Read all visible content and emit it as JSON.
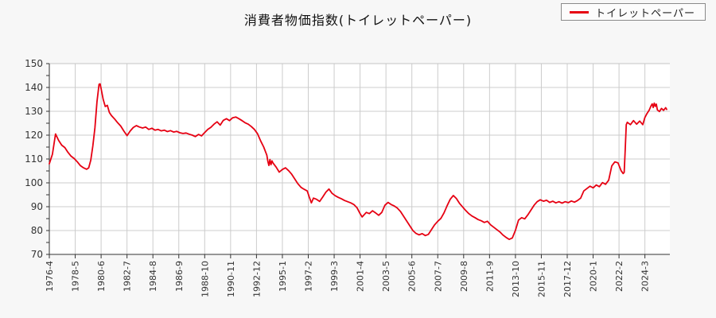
{
  "title": "消費者物価指数(トイレットペーパー)",
  "legend": {
    "position": "top-right",
    "items": [
      {
        "label": "トイレットペーパー",
        "color": "#e60012"
      }
    ]
  },
  "colors": {
    "page_background": "#f7f7f7",
    "plot_background": "#ffffff",
    "grid": "#cccccc",
    "plot_top_border": "#c4c4c4",
    "axis": "#333333",
    "tick_text": "#333333",
    "series_line": "#e60012",
    "title_text": "#111111"
  },
  "chart_data": {
    "type": "line",
    "title": "消費者物価指数(トイレットペーパー)",
    "xlabel": "",
    "ylabel": "",
    "grid": true,
    "legend_position": "top-right",
    "ylim": [
      70,
      150
    ],
    "y_ticks": [
      70,
      80,
      90,
      100,
      110,
      120,
      130,
      140,
      150
    ],
    "y_minor_tick_step": 5,
    "x_unit": "year-month",
    "x_start": "1976-4",
    "x_end": "2025-12",
    "x_tick_labels": [
      "1976-4",
      "1978-5",
      "1980-6",
      "1982-7",
      "1984-8",
      "1986-9",
      "1988-10",
      "1990-11",
      "1992-12",
      "1995-1",
      "1997-2",
      "1999-3",
      "2001-4",
      "2003-5",
      "2005-6",
      "2007-7",
      "2009-8",
      "2011-9",
      "2013-10",
      "2015-11",
      "2017-12",
      "2020-1",
      "2022-2",
      "2024-3"
    ],
    "series": [
      {
        "name": "トイレットペーパー",
        "color": "#e60012",
        "points": [
          [
            "1976-4",
            108.0
          ],
          [
            "1976-7",
            112.0
          ],
          [
            "1976-10",
            120.5
          ],
          [
            "1977-1",
            117.8
          ],
          [
            "1977-4",
            115.8
          ],
          [
            "1977-7",
            114.8
          ],
          [
            "1977-10",
            112.8
          ],
          [
            "1978-1",
            111.2
          ],
          [
            "1978-4",
            110.2
          ],
          [
            "1978-7",
            108.8
          ],
          [
            "1978-10",
            107.2
          ],
          [
            "1979-1",
            106.3
          ],
          [
            "1979-4",
            105.7
          ],
          [
            "1979-6",
            106.3
          ],
          [
            "1979-8",
            109.5
          ],
          [
            "1979-10",
            115.5
          ],
          [
            "1979-12",
            123.0
          ],
          [
            "1980-2",
            134.0
          ],
          [
            "1980-4",
            141.3
          ],
          [
            "1980-5",
            141.5
          ],
          [
            "1980-6",
            139.5
          ],
          [
            "1980-8",
            135.0
          ],
          [
            "1980-10",
            132.0
          ],
          [
            "1980-12",
            132.5
          ],
          [
            "1981-2",
            129.5
          ],
          [
            "1981-4",
            128.2
          ],
          [
            "1981-7",
            126.8
          ],
          [
            "1981-10",
            125.2
          ],
          [
            "1982-1",
            123.8
          ],
          [
            "1982-4",
            121.7
          ],
          [
            "1982-7",
            119.8
          ],
          [
            "1982-10",
            121.7
          ],
          [
            "1983-1",
            123.2
          ],
          [
            "1983-4",
            124.0
          ],
          [
            "1983-7",
            123.4
          ],
          [
            "1983-10",
            123.0
          ],
          [
            "1984-1",
            123.4
          ],
          [
            "1984-4",
            122.4
          ],
          [
            "1984-7",
            122.9
          ],
          [
            "1984-10",
            122.1
          ],
          [
            "1985-1",
            122.4
          ],
          [
            "1985-4",
            121.8
          ],
          [
            "1985-7",
            122.1
          ],
          [
            "1985-10",
            121.5
          ],
          [
            "1986-1",
            121.9
          ],
          [
            "1986-4",
            121.3
          ],
          [
            "1986-7",
            121.6
          ],
          [
            "1986-10",
            121.0
          ],
          [
            "1987-1",
            120.7
          ],
          [
            "1987-4",
            120.9
          ],
          [
            "1987-7",
            120.4
          ],
          [
            "1987-10",
            120.0
          ],
          [
            "1988-1",
            119.4
          ],
          [
            "1988-4",
            120.3
          ],
          [
            "1988-7",
            119.7
          ],
          [
            "1988-10",
            121.1
          ],
          [
            "1989-1",
            122.4
          ],
          [
            "1989-4",
            123.3
          ],
          [
            "1989-7",
            124.6
          ],
          [
            "1989-10",
            125.6
          ],
          [
            "1990-1",
            124.2
          ],
          [
            "1990-4",
            126.2
          ],
          [
            "1990-7",
            126.9
          ],
          [
            "1990-10",
            126.1
          ],
          [
            "1991-1",
            127.3
          ],
          [
            "1991-4",
            127.6
          ],
          [
            "1991-7",
            126.9
          ],
          [
            "1991-10",
            126.1
          ],
          [
            "1992-1",
            125.2
          ],
          [
            "1992-4",
            124.6
          ],
          [
            "1992-7",
            123.6
          ],
          [
            "1992-10",
            122.4
          ],
          [
            "1993-1",
            120.6
          ],
          [
            "1993-4",
            117.6
          ],
          [
            "1993-7",
            115.0
          ],
          [
            "1993-10",
            111.6
          ],
          [
            "1993-11",
            109.0
          ],
          [
            "1993-12",
            107.3
          ],
          [
            "1994-1",
            109.8
          ],
          [
            "1994-2",
            107.6
          ],
          [
            "1994-3",
            109.2
          ],
          [
            "1994-4",
            108.3
          ],
          [
            "1994-7",
            106.6
          ],
          [
            "1994-10",
            104.5
          ],
          [
            "1995-1",
            105.6
          ],
          [
            "1995-4",
            106.3
          ],
          [
            "1995-7",
            105.1
          ],
          [
            "1995-10",
            103.6
          ],
          [
            "1996-1",
            101.6
          ],
          [
            "1996-4",
            99.6
          ],
          [
            "1996-7",
            98.1
          ],
          [
            "1996-10",
            97.3
          ],
          [
            "1997-1",
            96.6
          ],
          [
            "1997-3",
            94.0
          ],
          [
            "1997-5",
            91.6
          ],
          [
            "1997-7",
            93.6
          ],
          [
            "1997-10",
            93.1
          ],
          [
            "1998-1",
            92.2
          ],
          [
            "1998-4",
            94.1
          ],
          [
            "1998-7",
            96.1
          ],
          [
            "1998-10",
            97.4
          ],
          [
            "1999-1",
            95.6
          ],
          [
            "1999-4",
            94.6
          ],
          [
            "1999-7",
            93.9
          ],
          [
            "1999-10",
            93.3
          ],
          [
            "2000-1",
            92.6
          ],
          [
            "2000-4",
            92.1
          ],
          [
            "2000-7",
            91.6
          ],
          [
            "2000-10",
            90.9
          ],
          [
            "2001-1",
            89.6
          ],
          [
            "2001-4",
            87.1
          ],
          [
            "2001-6",
            85.7
          ],
          [
            "2001-10",
            87.6
          ],
          [
            "2002-1",
            87.1
          ],
          [
            "2002-4",
            88.3
          ],
          [
            "2002-7",
            87.4
          ],
          [
            "2002-10",
            86.4
          ],
          [
            "2003-1",
            87.6
          ],
          [
            "2003-4",
            90.6
          ],
          [
            "2003-7",
            91.8
          ],
          [
            "2003-10",
            90.9
          ],
          [
            "2004-1",
            90.3
          ],
          [
            "2004-4",
            89.4
          ],
          [
            "2004-7",
            88.0
          ],
          [
            "2004-10",
            86.0
          ],
          [
            "2005-1",
            84.0
          ],
          [
            "2005-4",
            82.0
          ],
          [
            "2005-7",
            80.0
          ],
          [
            "2005-10",
            78.8
          ],
          [
            "2006-1",
            78.2
          ],
          [
            "2006-4",
            78.7
          ],
          [
            "2006-7",
            77.9
          ],
          [
            "2006-10",
            78.4
          ],
          [
            "2007-1",
            80.4
          ],
          [
            "2007-4",
            82.4
          ],
          [
            "2007-7",
            83.9
          ],
          [
            "2007-10",
            85.1
          ],
          [
            "2008-1",
            87.4
          ],
          [
            "2008-4",
            90.4
          ],
          [
            "2008-7",
            93.1
          ],
          [
            "2008-10",
            94.7
          ],
          [
            "2009-1",
            93.4
          ],
          [
            "2009-4",
            91.4
          ],
          [
            "2009-7",
            89.9
          ],
          [
            "2009-10",
            88.4
          ],
          [
            "2010-1",
            87.1
          ],
          [
            "2010-4",
            86.1
          ],
          [
            "2010-7",
            85.4
          ],
          [
            "2010-10",
            84.6
          ],
          [
            "2011-1",
            84.1
          ],
          [
            "2011-4",
            83.4
          ],
          [
            "2011-7",
            83.9
          ],
          [
            "2011-10",
            82.4
          ],
          [
            "2012-1",
            81.4
          ],
          [
            "2012-4",
            80.4
          ],
          [
            "2012-7",
            79.4
          ],
          [
            "2012-10",
            78.1
          ],
          [
            "2013-1",
            77.1
          ],
          [
            "2013-4",
            76.3
          ],
          [
            "2013-7",
            76.9
          ],
          [
            "2013-10",
            80.1
          ],
          [
            "2014-1",
            84.4
          ],
          [
            "2014-4",
            85.4
          ],
          [
            "2014-7",
            84.9
          ],
          [
            "2014-10",
            86.6
          ],
          [
            "2015-1",
            88.6
          ],
          [
            "2015-4",
            90.6
          ],
          [
            "2015-7",
            92.1
          ],
          [
            "2015-10",
            92.9
          ],
          [
            "2016-1",
            92.3
          ],
          [
            "2016-4",
            92.7
          ],
          [
            "2016-7",
            91.8
          ],
          [
            "2016-10",
            92.3
          ],
          [
            "2017-1",
            91.6
          ],
          [
            "2017-4",
            92.1
          ],
          [
            "2017-7",
            91.5
          ],
          [
            "2017-10",
            92.1
          ],
          [
            "2018-1",
            91.7
          ],
          [
            "2018-4",
            92.4
          ],
          [
            "2018-7",
            91.9
          ],
          [
            "2018-10",
            92.6
          ],
          [
            "2019-1",
            93.6
          ],
          [
            "2019-4",
            96.6
          ],
          [
            "2019-7",
            97.6
          ],
          [
            "2019-10",
            98.6
          ],
          [
            "2020-1",
            97.9
          ],
          [
            "2020-4",
            99.1
          ],
          [
            "2020-7",
            98.4
          ],
          [
            "2020-10",
            100.1
          ],
          [
            "2021-1",
            99.4
          ],
          [
            "2021-4",
            101.1
          ],
          [
            "2021-7",
            107.1
          ],
          [
            "2021-10",
            108.8
          ],
          [
            "2022-1",
            108.4
          ],
          [
            "2022-4",
            105.1
          ],
          [
            "2022-6",
            103.9
          ],
          [
            "2022-7",
            104.4
          ],
          [
            "2022-8",
            114.0
          ],
          [
            "2022-9",
            124.4
          ],
          [
            "2022-10",
            125.4
          ],
          [
            "2023-1",
            124.4
          ],
          [
            "2023-4",
            126.1
          ],
          [
            "2023-7",
            124.6
          ],
          [
            "2023-10",
            125.9
          ],
          [
            "2024-1",
            124.4
          ],
          [
            "2024-3",
            127.4
          ],
          [
            "2024-5",
            129.1
          ],
          [
            "2024-7",
            130.4
          ],
          [
            "2024-9",
            132.4
          ],
          [
            "2024-10",
            133.1
          ],
          [
            "2024-11",
            131.6
          ],
          [
            "2024-12",
            133.4
          ],
          [
            "2025-1",
            132.1
          ],
          [
            "2025-2",
            133.0
          ],
          [
            "2025-3",
            130.6
          ],
          [
            "2025-5",
            129.9
          ],
          [
            "2025-7",
            131.2
          ],
          [
            "2025-9",
            130.4
          ],
          [
            "2025-11",
            131.5
          ],
          [
            "2025-12",
            130.8
          ]
        ]
      }
    ]
  }
}
